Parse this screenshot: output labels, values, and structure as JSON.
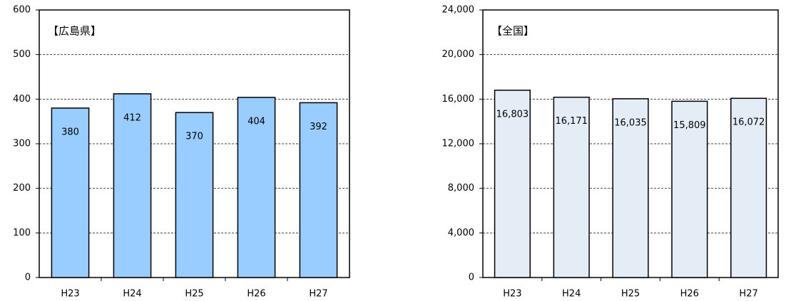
{
  "chart_data": [
    {
      "type": "bar",
      "title": "【広島県】",
      "categories": [
        "H23",
        "H24",
        "H25",
        "H26",
        "H27"
      ],
      "values": [
        380,
        412,
        370,
        404,
        392
      ],
      "color": "#99ccff",
      "ylim": [
        0,
        600
      ],
      "yticks": [
        0,
        100,
        200,
        300,
        400,
        500,
        600
      ],
      "grid": true
    },
    {
      "type": "bar",
      "title": "【全国】",
      "categories": [
        "H23",
        "H24",
        "H25",
        "H26",
        "H27"
      ],
      "values": [
        16803,
        16171,
        16035,
        15809,
        16072
      ],
      "value_labels": [
        "16,803",
        "16,171",
        "16,035",
        "15,809",
        "16,072"
      ],
      "color": "#e4edf5",
      "ylim": [
        0,
        24000
      ],
      "yticks": [
        0,
        {
          "value": 4000,
          "label": "4,000"
        },
        {
          "value": 8000,
          "label": "8,000"
        },
        {
          "value": 12000,
          "label": "12,000"
        },
        {
          "value": 16000,
          "label": "16,000"
        },
        {
          "value": 20000,
          "label": "20,000"
        },
        {
          "value": 24000,
          "label": "24,000"
        }
      ],
      "grid": true
    }
  ]
}
